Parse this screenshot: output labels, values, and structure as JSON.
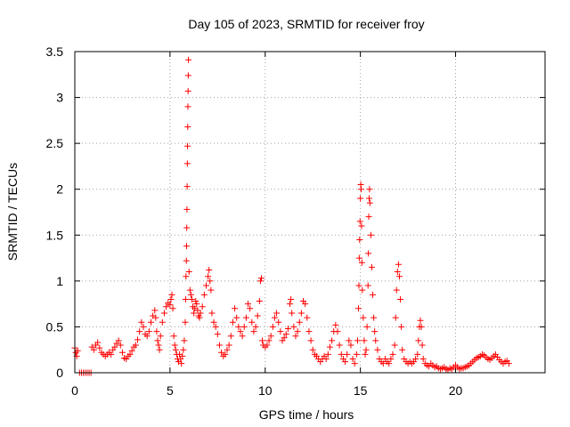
{
  "chart_data": {
    "type": "scatter",
    "title": "Day 105 of 2023, SRMTID for receiver froy",
    "xlabel": "GPS time / hours",
    "ylabel": "SRMTID / TECUs",
    "xlim": [
      0,
      24.7
    ],
    "ylim": [
      0,
      3.5
    ],
    "xticks": [
      0,
      5,
      10,
      15,
      20
    ],
    "xtick_labels": [
      "0",
      "5",
      "10",
      "15",
      "20"
    ],
    "yticks": [
      0,
      0.5,
      1,
      1.5,
      2,
      2.5,
      3,
      3.5
    ],
    "ytick_labels": [
      "0",
      "0.5",
      "1",
      "1.5",
      "2",
      "2.5",
      "3",
      "3.5"
    ],
    "grid": true,
    "marker_color": "#ff0000",
    "series": [
      {
        "name": "froy",
        "points": [
          [
            0.0,
            0.27
          ],
          [
            0.05,
            0.22
          ],
          [
            0.1,
            0.18
          ],
          [
            0.15,
            0.24
          ],
          [
            0.25,
            0.0
          ],
          [
            0.35,
            0.0
          ],
          [
            0.45,
            0.0
          ],
          [
            0.55,
            0.0
          ],
          [
            0.65,
            0.0
          ],
          [
            0.75,
            0.0
          ],
          [
            0.85,
            0.0
          ],
          [
            0.9,
            0.28
          ],
          [
            1.0,
            0.25
          ],
          [
            1.1,
            0.3
          ],
          [
            1.2,
            0.33
          ],
          [
            1.3,
            0.27
          ],
          [
            1.4,
            0.22
          ],
          [
            1.5,
            0.2
          ],
          [
            1.6,
            0.18
          ],
          [
            1.7,
            0.2
          ],
          [
            1.8,
            0.22
          ],
          [
            1.9,
            0.2
          ],
          [
            2.0,
            0.25
          ],
          [
            2.1,
            0.28
          ],
          [
            2.2,
            0.32
          ],
          [
            2.3,
            0.35
          ],
          [
            2.4,
            0.3
          ],
          [
            2.5,
            0.22
          ],
          [
            2.6,
            0.16
          ],
          [
            2.7,
            0.15
          ],
          [
            2.8,
            0.18
          ],
          [
            2.9,
            0.2
          ],
          [
            3.0,
            0.24
          ],
          [
            3.1,
            0.28
          ],
          [
            3.2,
            0.3
          ],
          [
            3.3,
            0.36
          ],
          [
            3.4,
            0.45
          ],
          [
            3.5,
            0.55
          ],
          [
            3.6,
            0.5
          ],
          [
            3.7,
            0.42
          ],
          [
            3.8,
            0.4
          ],
          [
            3.9,
            0.45
          ],
          [
            4.0,
            0.55
          ],
          [
            4.1,
            0.62
          ],
          [
            4.2,
            0.68
          ],
          [
            4.25,
            0.6
          ],
          [
            4.3,
            0.45
          ],
          [
            4.35,
            0.35
          ],
          [
            4.4,
            0.3
          ],
          [
            4.45,
            0.25
          ],
          [
            4.5,
            0.4
          ],
          [
            4.6,
            0.55
          ],
          [
            4.7,
            0.65
          ],
          [
            4.8,
            0.72
          ],
          [
            4.9,
            0.76
          ],
          [
            5.0,
            0.74
          ],
          [
            5.05,
            0.8
          ],
          [
            5.1,
            0.85
          ],
          [
            5.15,
            0.7
          ],
          [
            5.2,
            0.4
          ],
          [
            5.25,
            0.3
          ],
          [
            5.3,
            0.25
          ],
          [
            5.35,
            0.2
          ],
          [
            5.4,
            0.15
          ],
          [
            5.45,
            0.12
          ],
          [
            5.5,
            0.2
          ],
          [
            5.55,
            0.15
          ],
          [
            5.6,
            0.1
          ],
          [
            5.65,
            0.18
          ],
          [
            5.7,
            0.25
          ],
          [
            5.75,
            0.35
          ],
          [
            5.8,
            0.55
          ],
          [
            5.82,
            0.8
          ],
          [
            5.84,
            1.05
          ],
          [
            5.86,
            1.22
          ],
          [
            5.87,
            1.38
          ],
          [
            5.88,
            1.58
          ],
          [
            5.89,
            1.78
          ],
          [
            5.9,
            2.03
          ],
          [
            5.91,
            2.28
          ],
          [
            5.92,
            2.47
          ],
          [
            5.93,
            2.68
          ],
          [
            5.94,
            2.9
          ],
          [
            5.95,
            3.07
          ],
          [
            5.96,
            3.24
          ],
          [
            5.97,
            3.41
          ],
          [
            6.0,
            1.1
          ],
          [
            6.05,
            0.9
          ],
          [
            6.1,
            0.85
          ],
          [
            6.15,
            0.8
          ],
          [
            6.2,
            0.72
          ],
          [
            6.25,
            0.65
          ],
          [
            6.3,
            0.7
          ],
          [
            6.35,
            0.78
          ],
          [
            6.4,
            0.75
          ],
          [
            6.45,
            0.68
          ],
          [
            6.5,
            0.62
          ],
          [
            6.55,
            0.6
          ],
          [
            6.6,
            0.65
          ],
          [
            6.7,
            0.72
          ],
          [
            6.8,
            0.85
          ],
          [
            6.9,
            0.95
          ],
          [
            7.0,
            1.05
          ],
          [
            7.05,
            1.12
          ],
          [
            7.1,
            1.0
          ],
          [
            7.15,
            0.9
          ],
          [
            7.2,
            0.65
          ],
          [
            7.3,
            0.55
          ],
          [
            7.4,
            0.5
          ],
          [
            7.5,
            0.42
          ],
          [
            7.6,
            0.3
          ],
          [
            7.7,
            0.22
          ],
          [
            7.8,
            0.18
          ],
          [
            7.9,
            0.2
          ],
          [
            8.0,
            0.25
          ],
          [
            8.1,
            0.3
          ],
          [
            8.2,
            0.4
          ],
          [
            8.3,
            0.55
          ],
          [
            8.4,
            0.7
          ],
          [
            8.5,
            0.6
          ],
          [
            8.6,
            0.5
          ],
          [
            8.7,
            0.45
          ],
          [
            8.8,
            0.4
          ],
          [
            8.9,
            0.5
          ],
          [
            9.0,
            0.6
          ],
          [
            9.1,
            0.75
          ],
          [
            9.2,
            0.7
          ],
          [
            9.3,
            0.55
          ],
          [
            9.4,
            0.45
          ],
          [
            9.5,
            0.5
          ],
          [
            9.6,
            0.62
          ],
          [
            9.7,
            0.78
          ],
          [
            9.75,
            1.0
          ],
          [
            9.8,
            1.03
          ],
          [
            9.85,
            0.35
          ],
          [
            9.9,
            0.3
          ],
          [
            10.0,
            0.28
          ],
          [
            10.1,
            0.3
          ],
          [
            10.2,
            0.35
          ],
          [
            10.3,
            0.4
          ],
          [
            10.4,
            0.5
          ],
          [
            10.5,
            0.6
          ],
          [
            10.6,
            0.65
          ],
          [
            10.7,
            0.55
          ],
          [
            10.8,
            0.45
          ],
          [
            10.9,
            0.35
          ],
          [
            11.0,
            0.38
          ],
          [
            11.1,
            0.42
          ],
          [
            11.2,
            0.48
          ],
          [
            11.3,
            0.75
          ],
          [
            11.35,
            0.8
          ],
          [
            11.4,
            0.65
          ],
          [
            11.5,
            0.5
          ],
          [
            11.6,
            0.4
          ],
          [
            11.7,
            0.45
          ],
          [
            11.8,
            0.55
          ],
          [
            11.9,
            0.65
          ],
          [
            12.0,
            0.78
          ],
          [
            12.1,
            0.75
          ],
          [
            12.2,
            0.6
          ],
          [
            12.3,
            0.45
          ],
          [
            12.4,
            0.35
          ],
          [
            12.5,
            0.25
          ],
          [
            12.6,
            0.2
          ],
          [
            12.7,
            0.18
          ],
          [
            12.8,
            0.15
          ],
          [
            12.9,
            0.12
          ],
          [
            13.0,
            0.15
          ],
          [
            13.1,
            0.18
          ],
          [
            13.2,
            0.15
          ],
          [
            13.3,
            0.2
          ],
          [
            13.4,
            0.28
          ],
          [
            13.5,
            0.35
          ],
          [
            13.6,
            0.45
          ],
          [
            13.7,
            0.52
          ],
          [
            13.8,
            0.45
          ],
          [
            13.9,
            0.3
          ],
          [
            14.0,
            0.2
          ],
          [
            14.1,
            0.15
          ],
          [
            14.2,
            0.12
          ],
          [
            14.3,
            0.2
          ],
          [
            14.4,
            0.35
          ],
          [
            14.5,
            0.3
          ],
          [
            14.6,
            0.15
          ],
          [
            14.7,
            0.1
          ],
          [
            14.8,
            0.2
          ],
          [
            14.85,
            0.35
          ],
          [
            14.9,
            0.7
          ],
          [
            14.92,
            0.95
          ],
          [
            14.94,
            1.25
          ],
          [
            14.96,
            1.45
          ],
          [
            14.98,
            1.65
          ],
          [
            15.0,
            1.9
          ],
          [
            15.02,
            2.05
          ],
          [
            15.04,
            2.0
          ],
          [
            15.06,
            1.6
          ],
          [
            15.08,
            1.2
          ],
          [
            15.1,
            0.9
          ],
          [
            15.15,
            0.6
          ],
          [
            15.2,
            0.35
          ],
          [
            15.25,
            0.2
          ],
          [
            15.3,
            0.25
          ],
          [
            15.35,
            0.5
          ],
          [
            15.4,
            0.95
          ],
          [
            15.42,
            1.3
          ],
          [
            15.44,
            1.7
          ],
          [
            15.46,
            1.9
          ],
          [
            15.48,
            2.0
          ],
          [
            15.5,
            1.85
          ],
          [
            15.55,
            1.5
          ],
          [
            15.6,
            1.15
          ],
          [
            15.65,
            0.85
          ],
          [
            15.7,
            0.6
          ],
          [
            15.75,
            0.45
          ],
          [
            15.8,
            0.35
          ],
          [
            15.9,
            0.25
          ],
          [
            16.0,
            0.15
          ],
          [
            16.1,
            0.12
          ],
          [
            16.2,
            0.1
          ],
          [
            16.3,
            0.15
          ],
          [
            16.4,
            0.12
          ],
          [
            16.5,
            0.1
          ],
          [
            16.6,
            0.15
          ],
          [
            16.7,
            0.2
          ],
          [
            16.8,
            0.3
          ],
          [
            16.85,
            0.6
          ],
          [
            16.9,
            0.9
          ],
          [
            16.95,
            1.1
          ],
          [
            17.0,
            1.18
          ],
          [
            17.05,
            1.05
          ],
          [
            17.1,
            0.8
          ],
          [
            17.15,
            0.5
          ],
          [
            17.2,
            0.25
          ],
          [
            17.3,
            0.15
          ],
          [
            17.4,
            0.12
          ],
          [
            17.5,
            0.1
          ],
          [
            17.6,
            0.12
          ],
          [
            17.7,
            0.1
          ],
          [
            17.8,
            0.12
          ],
          [
            17.9,
            0.15
          ],
          [
            18.0,
            0.2
          ],
          [
            18.05,
            0.35
          ],
          [
            18.1,
            0.5
          ],
          [
            18.15,
            0.57
          ],
          [
            18.2,
            0.5
          ],
          [
            18.25,
            0.3
          ],
          [
            18.3,
            0.15
          ],
          [
            18.4,
            0.1
          ],
          [
            18.5,
            0.08
          ],
          [
            18.6,
            0.07
          ],
          [
            18.7,
            0.1
          ],
          [
            18.8,
            0.08
          ],
          [
            18.9,
            0.06
          ],
          [
            19.0,
            0.07
          ],
          [
            19.1,
            0.05
          ],
          [
            19.2,
            0.04
          ],
          [
            19.3,
            0.05
          ],
          [
            19.4,
            0.06
          ],
          [
            19.5,
            0.04
          ],
          [
            19.6,
            0.03
          ],
          [
            19.7,
            0.05
          ],
          [
            19.8,
            0.04
          ],
          [
            19.9,
            0.06
          ],
          [
            20.0,
            0.08
          ],
          [
            20.1,
            0.06
          ],
          [
            20.2,
            0.04
          ],
          [
            20.3,
            0.05
          ],
          [
            20.4,
            0.05
          ],
          [
            20.5,
            0.06
          ],
          [
            20.6,
            0.07
          ],
          [
            20.7,
            0.08
          ],
          [
            20.8,
            0.1
          ],
          [
            20.9,
            0.12
          ],
          [
            21.0,
            0.14
          ],
          [
            21.1,
            0.16
          ],
          [
            21.2,
            0.17
          ],
          [
            21.3,
            0.18
          ],
          [
            21.4,
            0.2
          ],
          [
            21.5,
            0.19
          ],
          [
            21.6,
            0.17
          ],
          [
            21.7,
            0.15
          ],
          [
            21.8,
            0.14
          ],
          [
            21.9,
            0.16
          ],
          [
            22.0,
            0.18
          ],
          [
            22.1,
            0.2
          ],
          [
            22.2,
            0.17
          ],
          [
            22.3,
            0.14
          ],
          [
            22.4,
            0.12
          ],
          [
            22.5,
            0.1
          ],
          [
            22.6,
            0.12
          ],
          [
            22.7,
            0.13
          ],
          [
            22.8,
            0.1
          ]
        ]
      }
    ]
  }
}
